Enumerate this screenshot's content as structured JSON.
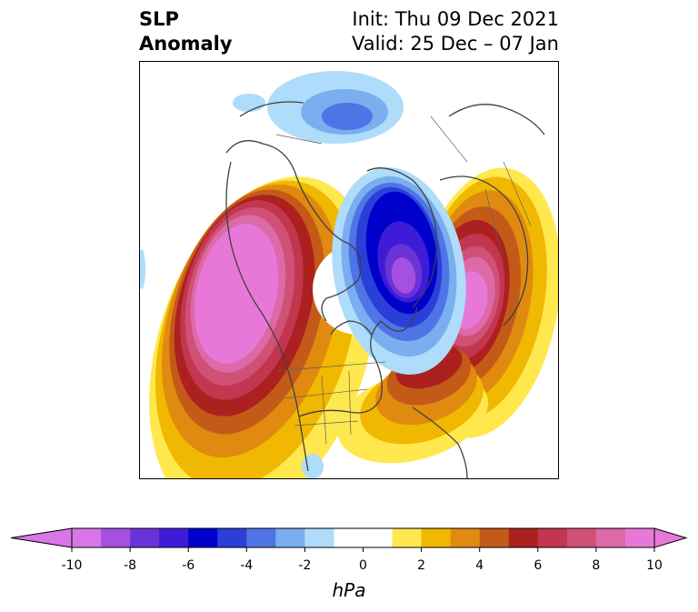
{
  "title": {
    "left_line1": "SLP",
    "left_line2": "Anomaly",
    "right_line1": "Init: Thu 09 Dec 2021",
    "right_line2": "Valid: 25 Dec – 07 Jan"
  },
  "colorbar": {
    "unit": "hPa",
    "range": [
      -10,
      10
    ],
    "step": 1,
    "extend": "both",
    "tick_labels": [
      "-10",
      "-8",
      "-6",
      "-4",
      "-2",
      "0",
      "2",
      "4",
      "6",
      "8",
      "10"
    ],
    "colors": [
      "#d876e8",
      "#a550e0",
      "#6a33d8",
      "#3e1bd6",
      "#0000cd",
      "#2a3fd8",
      "#4f74e6",
      "#7aaeef",
      "#aedcfa",
      "#ffffff",
      "#ffffff",
      "#ffe84d",
      "#f0b800",
      "#e08a10",
      "#c45a18",
      "#ad2020",
      "#c23650",
      "#d05076",
      "#dc6aa8",
      "#e878d8"
    ]
  },
  "map": {
    "projection": "polar-stereographic",
    "region": "Northern Hemisphere",
    "anomalies": [
      {
        "name": "western North America / NE Pacific high",
        "sign": "positive",
        "peak_hpa": 10
      },
      {
        "name": "Scandinavia / Ural high",
        "sign": "positive",
        "peak_hpa": 10
      },
      {
        "name": "eastern Canada / North Atlantic high",
        "sign": "positive",
        "peak_hpa": 6
      },
      {
        "name": "Greenland / Arctic low",
        "sign": "negative",
        "peak_hpa": -9
      },
      {
        "name": "Siberia / East Asia low",
        "sign": "negative",
        "peak_hpa": -3
      }
    ]
  }
}
